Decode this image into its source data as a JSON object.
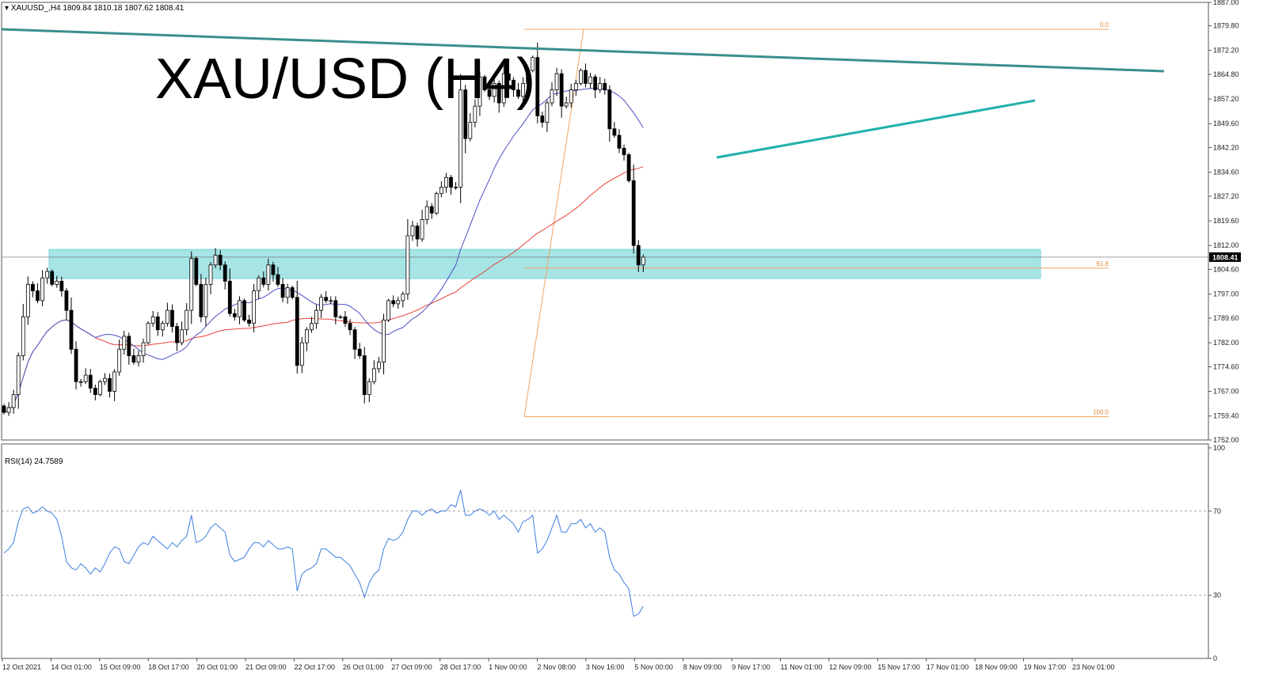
{
  "header": {
    "symbol_label": "XAUUSD_,H4",
    "ohlc": "1809.84 1810.18 1807.62 1808.41",
    "overlay_title": "XAU/USD (H4)"
  },
  "chart_data": [
    {
      "type": "candlestick",
      "title": "XAU/USD (H4)",
      "ylim": [
        1752.0,
        1887.0
      ],
      "y_ticks": [
        "1887.00",
        "1879.80",
        "1872.20",
        "1864.80",
        "1857.20",
        "1849.60",
        "1842.20",
        "1834.60",
        "1827.20",
        "1819.60",
        "1812.00",
        "1804.60",
        "1797.00",
        "1789.60",
        "1782.00",
        "1774.60",
        "1767.00",
        "1759.40",
        "1752.00"
      ],
      "x_ticks": [
        "12 Oct 2021",
        "14 Oct 01:00",
        "15 Oct 09:00",
        "18 Oct 17:00",
        "20 Oct 01:00",
        "21 Oct 09:00",
        "22 Oct 17:00",
        "26 Oct 01:00",
        "27 Oct 09:00",
        "28 Oct 17:00",
        "1 Nov 00:00",
        "2 Nov 08:00",
        "3 Nov 16:00",
        "5 Nov 00:00",
        "8 Nov 09:00",
        "9 Nov 17:00",
        "11 Nov 01:00",
        "12 Nov 09:00",
        "15 Nov 17:00",
        "17 Nov 01:00",
        "18 Nov 09:00",
        "19 Nov 17:00",
        "23 Nov 01:00"
      ],
      "current_price": "1808.41",
      "close": [
        1760.5,
        1762,
        1766,
        1778,
        1790,
        1800,
        1798,
        1795,
        1802,
        1804,
        1800,
        1801,
        1798,
        1792,
        1780,
        1770,
        1770,
        1772,
        1768,
        1766,
        1770,
        1771,
        1767,
        1773,
        1780,
        1784,
        1778,
        1776,
        1778,
        1782,
        1788,
        1790,
        1786,
        1788,
        1792,
        1787,
        1782,
        1786,
        1792,
        1808,
        1800,
        1790,
        1800,
        1806,
        1809,
        1806,
        1801,
        1791,
        1790,
        1795,
        1789,
        1788,
        1798,
        1802,
        1800,
        1806,
        1803,
        1800,
        1796,
        1799,
        1796,
        1775,
        1782,
        1786,
        1788,
        1792,
        1796,
        1795,
        1795,
        1790,
        1790,
        1788,
        1786,
        1780,
        1778,
        1766,
        1770,
        1774,
        1776,
        1789,
        1795,
        1794,
        1795,
        1797,
        1815,
        1818,
        1814,
        1820,
        1824,
        1822,
        1828,
        1830,
        1833,
        1830,
        1830,
        1860,
        1845,
        1850,
        1855,
        1864,
        1860,
        1858,
        1862,
        1856,
        1865,
        1863,
        1860,
        1858,
        1862,
        1866,
        1870,
        1852,
        1850,
        1856,
        1860,
        1865,
        1855,
        1856,
        1860,
        1862,
        1866,
        1862,
        1864,
        1860,
        1862,
        1860,
        1848,
        1846,
        1842,
        1840,
        1832,
        1812,
        1806,
        1808.41
      ],
      "indicators": [
        "moving average (blue)",
        "moving average (red)"
      ],
      "fibonacci": [
        {
          "label": "0.0",
          "price": 1878.7
        },
        {
          "label": "61.8",
          "price": 1805.0
        },
        {
          "label": "100.0",
          "price": 1759.2
        }
      ],
      "support_zone": [
        1801.8,
        1810.8
      ],
      "trendlines": [
        "descending resistance",
        "rising support"
      ]
    },
    {
      "type": "line",
      "title": "RSI(14)",
      "value_label": "RSI(14) 24.7589",
      "ylim": [
        0,
        100
      ],
      "y_ticks": [
        "100",
        "70",
        "30",
        "0"
      ],
      "levels": [
        70,
        30
      ],
      "values": [
        50,
        52,
        55,
        65,
        71,
        72,
        69,
        70,
        72,
        70,
        69,
        66,
        58,
        46,
        43,
        42,
        45,
        43,
        40,
        43,
        41,
        45,
        50,
        53,
        52,
        46,
        45,
        49,
        53,
        55,
        54,
        58,
        56,
        54,
        52,
        55,
        53,
        56,
        58,
        68,
        55,
        56,
        58,
        62,
        64,
        62,
        60,
        49,
        46,
        47,
        48,
        52,
        55,
        55,
        53,
        56,
        54,
        52,
        52,
        53,
        52,
        32,
        40,
        42,
        43,
        45,
        52,
        52,
        50,
        48,
        48,
        46,
        44,
        40,
        36,
        29,
        36,
        40,
        42,
        52,
        57,
        56,
        57,
        60,
        66,
        70,
        70,
        68,
        70,
        71,
        69,
        70,
        70,
        73,
        72,
        80,
        68,
        68,
        70,
        71,
        70,
        68,
        70,
        66,
        68,
        66,
        64,
        60,
        65,
        66,
        68,
        50,
        52,
        56,
        62,
        68,
        60,
        60,
        64,
        64,
        66,
        62,
        64,
        60,
        62,
        60,
        48,
        42,
        40,
        36,
        33,
        20,
        21,
        24.76
      ]
    }
  ]
}
